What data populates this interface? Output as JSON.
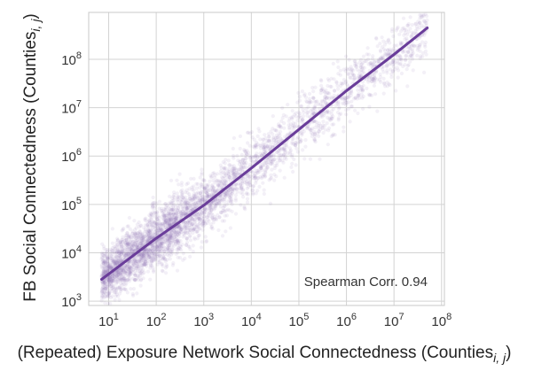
{
  "chart_data": {
    "type": "scatter",
    "xlabel": "(Repeated) Exposure Network Social Connectedness (Counties",
    "xlabel_sub": "i, j",
    "xlabel_close": ")",
    "ylabel": "FB Social Connectedness (Counties",
    "ylabel_sub": "i, j",
    "ylabel_close": ")",
    "x_scale": "log",
    "y_scale": "log",
    "xlim_exp": [
      0.58,
      8.06
    ],
    "ylim_exp": [
      2.91,
      8.97
    ],
    "x_ticks": [
      {
        "exp": 1,
        "base": "10",
        "sup": "1"
      },
      {
        "exp": 2,
        "base": "10",
        "sup": "2"
      },
      {
        "exp": 3,
        "base": "10",
        "sup": "3"
      },
      {
        "exp": 4,
        "base": "10",
        "sup": "4"
      },
      {
        "exp": 5,
        "base": "10",
        "sup": "5"
      },
      {
        "exp": 6,
        "base": "10",
        "sup": "6"
      },
      {
        "exp": 7,
        "base": "10",
        "sup": "7"
      },
      {
        "exp": 8,
        "base": "10",
        "sup": "8"
      }
    ],
    "y_ticks": [
      {
        "exp": 3,
        "base": "10",
        "sup": "3"
      },
      {
        "exp": 4,
        "base": "10",
        "sup": "4"
      },
      {
        "exp": 5,
        "base": "10",
        "sup": "5"
      },
      {
        "exp": 6,
        "base": "10",
        "sup": "6"
      },
      {
        "exp": 7,
        "base": "10",
        "sup": "7"
      },
      {
        "exp": 8,
        "base": "10",
        "sup": "8"
      }
    ],
    "grid": true,
    "annotation": "Spearman Corr. 0.94",
    "fit_line": {
      "x_exp": [
        0.85,
        2.0,
        3.0,
        4.0,
        5.0,
        6.0,
        7.0,
        7.7
      ],
      "y_exp": [
        3.45,
        4.3,
        4.98,
        5.75,
        6.55,
        7.35,
        8.1,
        8.65
      ]
    },
    "scatter": {
      "n_points": 4200,
      "x_exp_range": [
        0.85,
        7.7
      ],
      "spread_exp": 0.3,
      "note": "dense cloud of semi-transparent points around the fit line"
    },
    "colors": {
      "point": "#8c6bb1",
      "line": "#6a3d9a",
      "grid": "#d3d3d3",
      "frame": "#c8c8c8"
    }
  }
}
